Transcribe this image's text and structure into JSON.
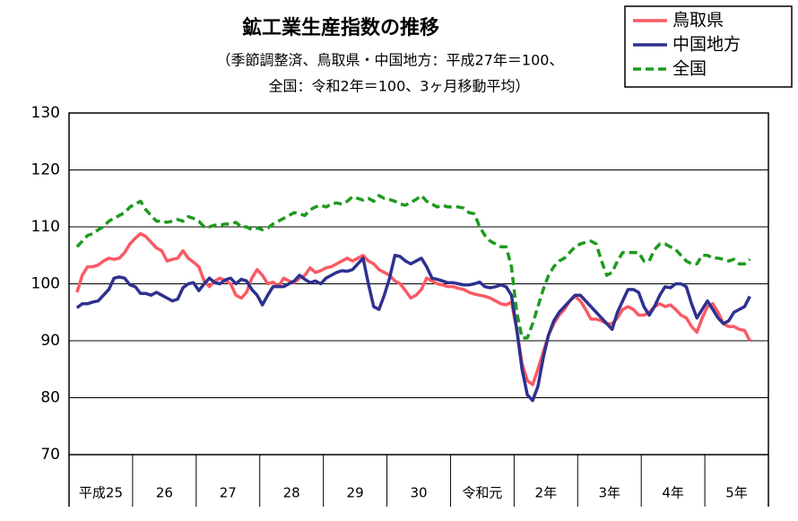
{
  "chart_data": {
    "type": "line",
    "title": "鉱工業生産指数の推移",
    "subtitle": [
      "（季節調整済、鳥取県・中国地方：平成27年＝100、",
      "全国：令和2年＝100、3ヶ月移動平均）"
    ],
    "categories": [
      "平成25",
      null,
      null,
      null,
      null,
      null,
      null,
      null,
      null,
      null,
      null,
      null,
      "26",
      null,
      null,
      null,
      null,
      null,
      null,
      null,
      null,
      null,
      null,
      null,
      "27",
      null,
      null,
      null,
      null,
      null,
      null,
      null,
      null,
      null,
      null,
      null,
      "28",
      null,
      null,
      null,
      null,
      null,
      null,
      null,
      null,
      null,
      null,
      null,
      "29",
      null,
      null,
      null,
      null,
      null,
      null,
      null,
      null,
      null,
      null,
      null,
      "30",
      null,
      null,
      null,
      null,
      null,
      null,
      null,
      null,
      null,
      null,
      null,
      "令和元",
      null,
      null,
      null,
      null,
      null,
      null,
      null,
      null,
      null,
      null,
      null,
      "2年",
      null,
      null,
      null,
      null,
      null,
      null,
      null,
      null,
      null,
      null,
      null,
      "3年",
      null,
      null,
      null,
      null,
      null,
      null,
      null,
      null,
      null,
      null,
      null,
      "4年",
      null,
      null,
      null,
      null,
      null,
      null,
      null,
      null,
      null,
      null,
      null,
      "5年",
      null,
      null,
      null,
      null,
      null,
      null,
      null,
      null,
      null,
      null,
      null
    ],
    "ylim": [
      70,
      130
    ],
    "yticks": [
      70,
      80,
      90,
      100,
      110,
      120,
      130
    ],
    "grid": true,
    "legend": "top-right",
    "series": [
      {
        "name": "鳥取県",
        "color": "#fa5a64",
        "dash": false,
        "values": [
          null,
          98.5,
          101.5,
          103,
          103,
          103.3,
          104,
          104.5,
          104.3,
          104.5,
          105.5,
          107,
          108,
          108.8,
          108.3,
          107.3,
          106.3,
          105.8,
          104,
          104.3,
          104.5,
          105.8,
          104.5,
          103.8,
          103,
          100.5,
          99.5,
          100.5,
          101,
          100.5,
          100,
          98,
          97.5,
          98.5,
          101,
          102.5,
          101.5,
          100,
          100.3,
          99.5,
          101,
          100.5,
          100.2,
          101,
          101.5,
          102.8,
          102,
          102.3,
          102.8,
          103,
          103.5,
          104,
          104.5,
          104,
          104.5,
          105,
          104,
          103.5,
          102.5,
          102,
          101.5,
          100.5,
          100,
          98.8,
          97.5,
          98,
          99,
          101,
          100.5,
          100,
          99.8,
          99.5,
          99.5,
          99.2,
          99,
          98.5,
          98.2,
          98,
          97.8,
          97.5,
          97,
          96.5,
          96.3,
          96.8,
          92,
          86,
          83,
          82.3,
          85,
          88,
          91,
          93,
          94.5,
          95.5,
          97,
          97.8,
          97,
          95.5,
          93.8,
          93.8,
          93.5,
          93,
          93,
          94,
          95.5,
          96,
          95.5,
          94.5,
          94.5,
          95,
          96,
          96.5,
          96,
          96.3,
          95.5,
          94.5,
          94,
          92.5,
          91.5,
          94,
          96,
          96.5,
          95,
          93,
          92.5,
          92.5,
          92,
          91.8,
          90,
          null,
          null,
          null
        ]
      },
      {
        "name": "中国地方",
        "color": "#2e318f",
        "dash": false,
        "values": [
          null,
          95.8,
          96.5,
          96.5,
          96.8,
          97,
          98,
          99,
          101,
          101.2,
          101,
          99.8,
          99.5,
          98.3,
          98.3,
          98,
          98.5,
          98,
          97.5,
          97,
          97.3,
          99.3,
          100,
          100.2,
          98.8,
          100,
          101,
          100.2,
          100,
          100.7,
          101,
          100,
          100.8,
          100.5,
          99,
          98,
          96.3,
          98,
          99.5,
          99.5,
          99.5,
          100,
          100.5,
          101.5,
          100.8,
          100.2,
          100.5,
          100,
          101,
          101.5,
          102,
          102.3,
          102.2,
          102.5,
          103.5,
          104.5,
          100,
          96,
          95.5,
          98,
          101,
          105,
          104.8,
          104,
          103.5,
          104,
          104.5,
          103,
          101,
          100.8,
          100.5,
          100.2,
          100.2,
          100,
          99.8,
          99.8,
          100,
          100.3,
          99.5,
          99.3,
          99.5,
          99.8,
          99.5,
          98,
          92,
          85,
          80.5,
          79.5,
          82,
          87,
          91,
          93.5,
          95,
          96,
          97,
          98,
          98,
          97,
          96,
          95,
          94,
          93,
          92,
          95,
          97,
          99,
          99,
          98.5,
          96,
          94.5,
          96,
          98,
          99.5,
          99.3,
          100,
          100,
          99.5,
          96.5,
          94,
          95.5,
          97,
          95.5,
          94,
          93,
          93.5,
          95,
          95.5,
          96,
          97.8,
          null,
          null,
          null
        ]
      },
      {
        "name": "全国",
        "color": "#1e9a1e",
        "dash": true,
        "values": [
          null,
          106.5,
          107.5,
          108.5,
          108.8,
          109.5,
          110,
          111,
          111.5,
          112,
          112.5,
          113.5,
          114,
          114.5,
          113,
          112,
          111,
          111,
          110.8,
          111,
          111.3,
          111,
          111.8,
          111.5,
          111,
          110,
          110,
          110.3,
          110.3,
          110.5,
          110.5,
          110.8,
          110,
          110,
          109.5,
          109.8,
          109.5,
          109.8,
          110.5,
          111,
          111.5,
          112,
          112.5,
          112.3,
          112,
          113,
          113.5,
          113.8,
          113.5,
          114,
          114.2,
          114,
          114.5,
          115.3,
          115,
          114.7,
          115,
          114.5,
          115.5,
          115,
          114.8,
          114.5,
          114,
          113.8,
          114.3,
          114.8,
          115.5,
          114.5,
          114,
          113.5,
          113.8,
          113.5,
          113.5,
          113.5,
          113.3,
          112.5,
          112.3,
          110,
          108.5,
          107.5,
          107,
          106.5,
          106.5,
          103,
          95,
          90.5,
          90.5,
          93,
          96,
          99,
          101.5,
          103,
          104,
          104.5,
          105.5,
          106.5,
          107,
          107.3,
          107.5,
          107,
          104,
          101.5,
          102,
          104,
          105.5,
          105.5,
          105.5,
          105.5,
          104,
          104,
          106,
          107,
          107,
          106.5,
          106,
          105,
          104,
          103.5,
          103.5,
          105,
          105,
          104.5,
          104.5,
          104.3,
          104,
          104.3,
          103.5,
          103.5,
          104.3,
          null,
          null,
          null
        ]
      }
    ]
  }
}
